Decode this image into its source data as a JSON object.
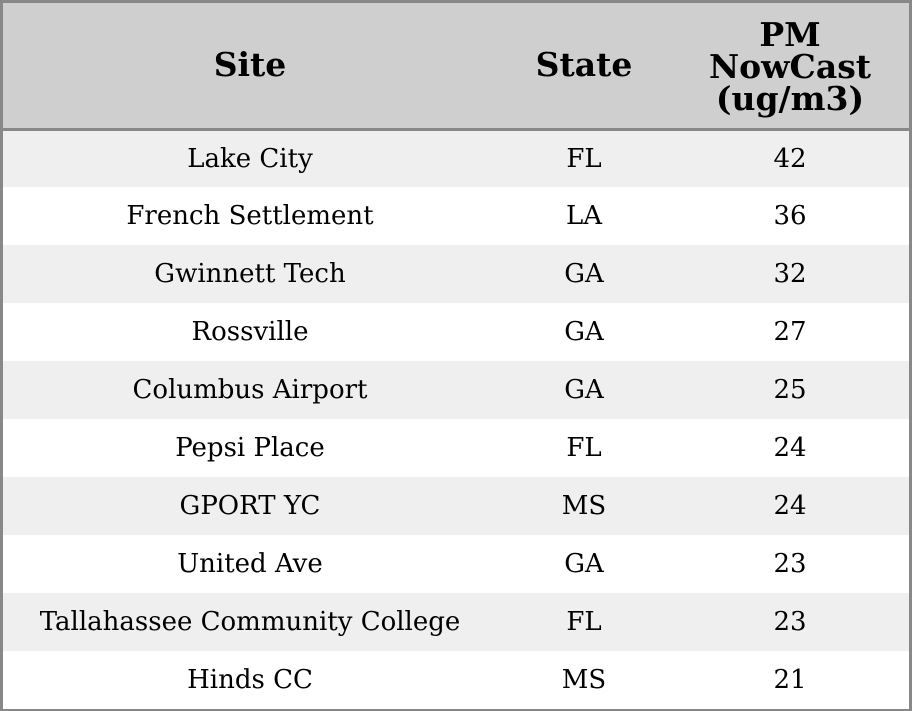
{
  "table": {
    "headers": {
      "site": "Site",
      "state": "State",
      "pm_line1": "PM",
      "pm_line2": "NowCast",
      "pm_line3": "(ug/m3)"
    },
    "rows": [
      {
        "site": "Lake City",
        "state": "FL",
        "pm": "42"
      },
      {
        "site": "French Settlement",
        "state": "LA",
        "pm": "36"
      },
      {
        "site": "Gwinnett Tech",
        "state": "GA",
        "pm": "32"
      },
      {
        "site": "Rossville",
        "state": "GA",
        "pm": "27"
      },
      {
        "site": "Columbus Airport",
        "state": "GA",
        "pm": "25"
      },
      {
        "site": "Pepsi Place",
        "state": "FL",
        "pm": "24"
      },
      {
        "site": "GPORT YC",
        "state": "MS",
        "pm": "24"
      },
      {
        "site": "United Ave",
        "state": "GA",
        "pm": "23"
      },
      {
        "site": "Tallahassee Community College",
        "state": "FL",
        "pm": "23"
      },
      {
        "site": "Hinds CC",
        "state": "MS",
        "pm": "21"
      }
    ]
  },
  "colors": {
    "header_bg": "#cfcfcf",
    "row_alt_bg": "#efefef",
    "row_bg": "#ffffff",
    "border": "#888888"
  }
}
